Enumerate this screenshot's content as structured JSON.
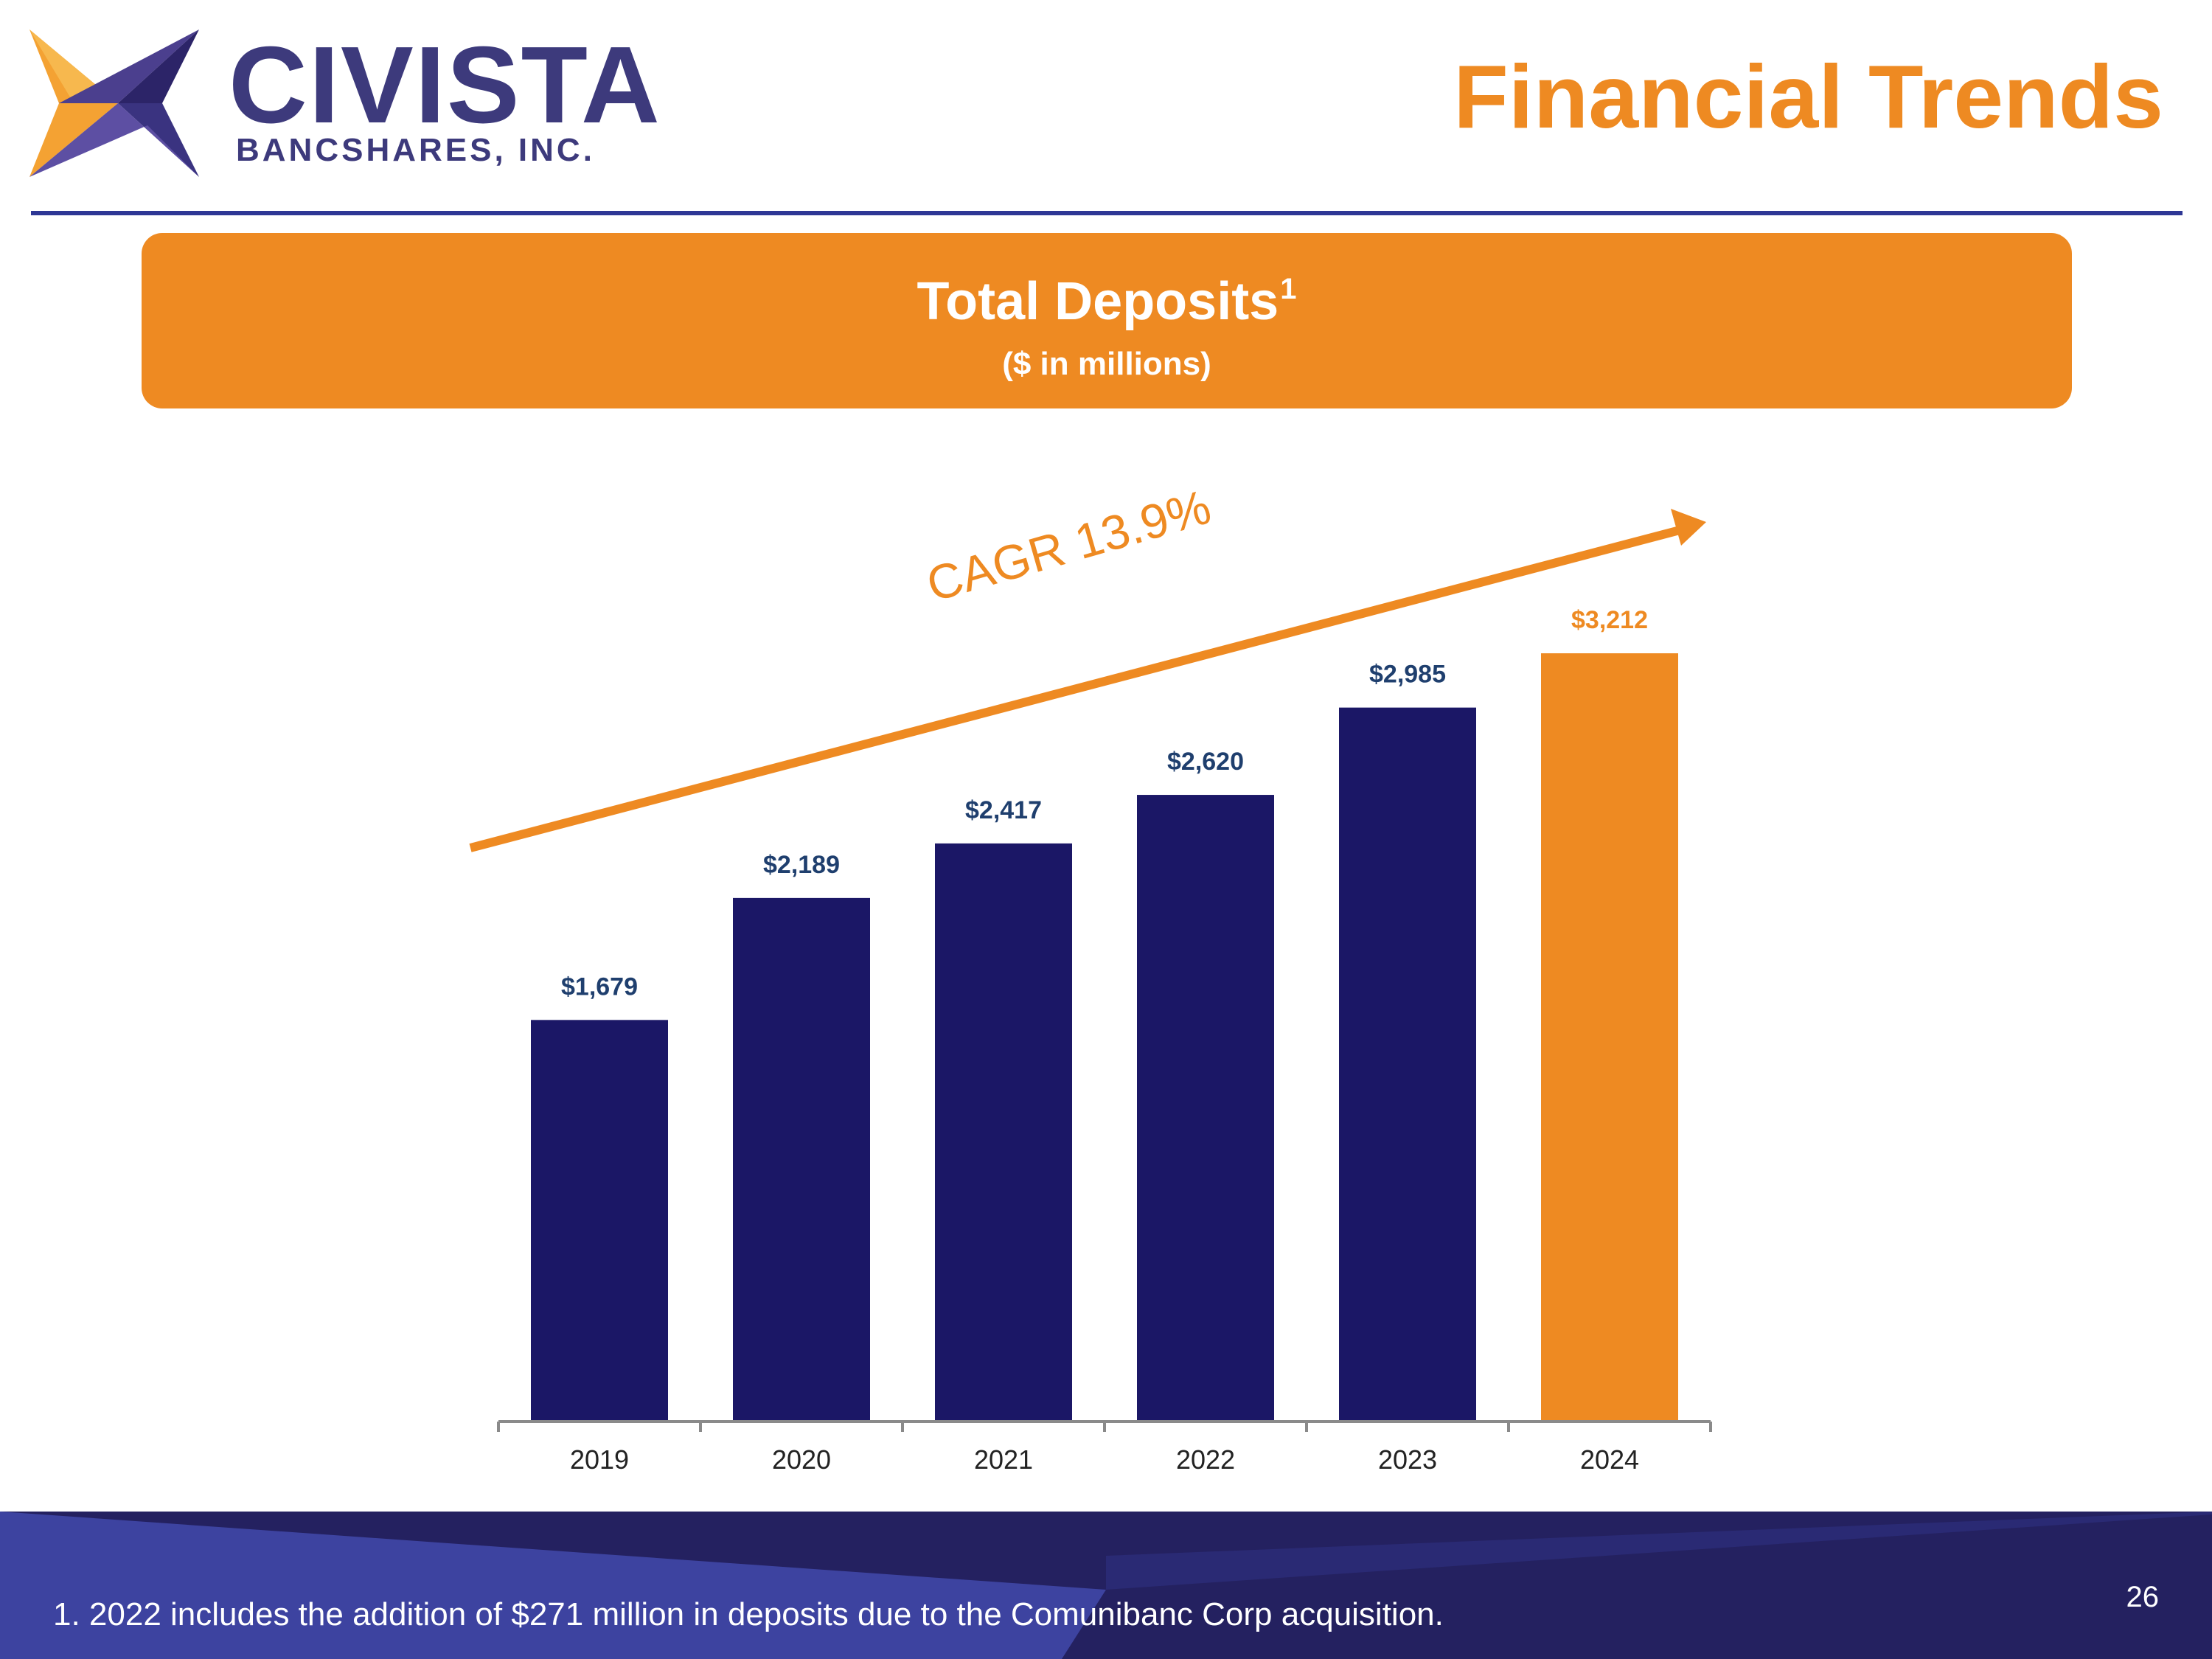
{
  "header": {
    "logo_text": "CIVISTA",
    "logo_subtext": "BANCSHARES, INC.",
    "title": "Financial Trends"
  },
  "banner": {
    "title": "Total Deposits",
    "footnote_marker": "1",
    "subtitle": "($ in millions)"
  },
  "chart_data": {
    "type": "bar",
    "title": "Total Deposits",
    "subtitle": "($ in millions)",
    "categories": [
      "2019",
      "2020",
      "2021",
      "2022",
      "2023",
      "2024"
    ],
    "values": [
      1679,
      2189,
      2417,
      2620,
      2985,
      3212
    ],
    "data_labels": [
      "$1,679",
      "$2,189",
      "$2,417",
      "$2,620",
      "$2,985",
      "$3,212"
    ],
    "highlight_index": 5,
    "xlabel": "",
    "ylabel": "",
    "ylim": [
      0,
      3212
    ],
    "grid": false,
    "annotation": "CAGR 13.9%",
    "colors": {
      "bar": "#1b1766",
      "highlight": "#ee8a22",
      "label": "#1f3f6e",
      "highlight_label": "#ee8a22",
      "axis": "#8a8a8a"
    }
  },
  "footer": {
    "footnote": "1. 2022 includes the addition of $271 million in deposits due to the Comunibanc Corp acquisition.",
    "page_number": "26"
  }
}
